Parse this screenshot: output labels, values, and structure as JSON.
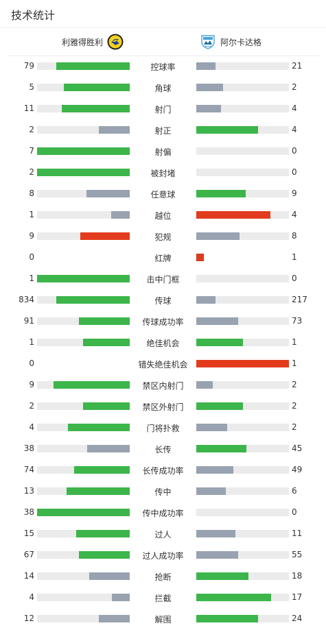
{
  "header": {
    "title": "技术统计"
  },
  "teams": {
    "home": {
      "name": "利雅得胜利",
      "logo_icon": "al-nassr-crest-icon"
    },
    "away": {
      "name": "阿尔卡达格",
      "logo_icon": "arkadag-crest-icon"
    }
  },
  "colors": {
    "green": "#3cb54a",
    "gray": "#98a2b0",
    "red": "#e23b1e",
    "track": "#ebebeb"
  },
  "stats": [
    {
      "label": "控球率",
      "home": "79",
      "away": "21",
      "home_pct": 0.79,
      "away_pct": 0.21,
      "home_color": "green",
      "away_color": "gray"
    },
    {
      "label": "角球",
      "home": "5",
      "away": "2",
      "home_pct": 0.71,
      "away_pct": 0.29,
      "home_color": "green",
      "away_color": "gray"
    },
    {
      "label": "射门",
      "home": "11",
      "away": "4",
      "home_pct": 0.73,
      "away_pct": 0.27,
      "home_color": "green",
      "away_color": "gray"
    },
    {
      "label": "射正",
      "home": "2",
      "away": "4",
      "home_pct": 0.33,
      "away_pct": 0.67,
      "home_color": "gray",
      "away_color": "green"
    },
    {
      "label": "射偏",
      "home": "7",
      "away": "0",
      "home_pct": 1.0,
      "away_pct": 0,
      "home_color": "green",
      "away_color": "gray"
    },
    {
      "label": "被封堵",
      "home": "2",
      "away": "0",
      "home_pct": 1.0,
      "away_pct": 0,
      "home_color": "green",
      "away_color": "gray"
    },
    {
      "label": "任意球",
      "home": "8",
      "away": "9",
      "home_pct": 0.47,
      "away_pct": 0.53,
      "home_color": "gray",
      "away_color": "green"
    },
    {
      "label": "越位",
      "home": "1",
      "away": "4",
      "home_pct": 0.2,
      "away_pct": 0.8,
      "home_color": "gray",
      "away_color": "red"
    },
    {
      "label": "犯规",
      "home": "9",
      "away": "8",
      "home_pct": 0.53,
      "away_pct": 0.47,
      "home_color": "red",
      "away_color": "gray"
    },
    {
      "label": "红牌",
      "home": "0",
      "away": "1",
      "home_pct": 0,
      "away_pct": 0.08,
      "home_color": "gray",
      "away_color": "red",
      "no_track": true
    },
    {
      "label": "击中门框",
      "home": "1",
      "away": "0",
      "home_pct": 1.0,
      "away_pct": 0,
      "home_color": "green",
      "away_color": "gray"
    },
    {
      "label": "传球",
      "home": "834",
      "away": "217",
      "home_pct": 0.79,
      "away_pct": 0.21,
      "home_color": "green",
      "away_color": "gray"
    },
    {
      "label": "传球成功率",
      "home": "91",
      "away": "73",
      "home_pct": 0.55,
      "away_pct": 0.45,
      "home_color": "green",
      "away_color": "gray"
    },
    {
      "label": "绝佳机会",
      "home": "1",
      "away": "1",
      "home_pct": 0.5,
      "away_pct": 0.5,
      "home_color": "green",
      "away_color": "green"
    },
    {
      "label": "错失绝佳机会",
      "home": "0",
      "away": "1",
      "home_pct": 0,
      "away_pct": 1.0,
      "home_color": "gray",
      "away_color": "red",
      "no_track": true
    },
    {
      "label": "禁区内射门",
      "home": "9",
      "away": "2",
      "home_pct": 0.82,
      "away_pct": 0.18,
      "home_color": "green",
      "away_color": "gray"
    },
    {
      "label": "禁区外射门",
      "home": "2",
      "away": "2",
      "home_pct": 0.5,
      "away_pct": 0.5,
      "home_color": "green",
      "away_color": "green"
    },
    {
      "label": "门将扑救",
      "home": "4",
      "away": "2",
      "home_pct": 0.67,
      "away_pct": 0.33,
      "home_color": "green",
      "away_color": "gray"
    },
    {
      "label": "长传",
      "home": "38",
      "away": "45",
      "home_pct": 0.46,
      "away_pct": 0.54,
      "home_color": "gray",
      "away_color": "green"
    },
    {
      "label": "长传成功率",
      "home": "74",
      "away": "49",
      "home_pct": 0.6,
      "away_pct": 0.4,
      "home_color": "green",
      "away_color": "gray"
    },
    {
      "label": "传中",
      "home": "13",
      "away": "6",
      "home_pct": 0.68,
      "away_pct": 0.32,
      "home_color": "green",
      "away_color": "gray"
    },
    {
      "label": "传中成功率",
      "home": "38",
      "away": "0",
      "home_pct": 1.0,
      "away_pct": 0,
      "home_color": "green",
      "away_color": "gray"
    },
    {
      "label": "过人",
      "home": "15",
      "away": "11",
      "home_pct": 0.58,
      "away_pct": 0.42,
      "home_color": "green",
      "away_color": "gray"
    },
    {
      "label": "过人成功率",
      "home": "67",
      "away": "55",
      "home_pct": 0.55,
      "away_pct": 0.45,
      "home_color": "green",
      "away_color": "gray"
    },
    {
      "label": "抢断",
      "home": "14",
      "away": "18",
      "home_pct": 0.44,
      "away_pct": 0.56,
      "home_color": "gray",
      "away_color": "green"
    },
    {
      "label": "拦截",
      "home": "4",
      "away": "17",
      "home_pct": 0.19,
      "away_pct": 0.81,
      "home_color": "gray",
      "away_color": "green"
    },
    {
      "label": "解围",
      "home": "12",
      "away": "24",
      "home_pct": 0.33,
      "away_pct": 0.67,
      "home_color": "gray",
      "away_color": "green"
    }
  ]
}
